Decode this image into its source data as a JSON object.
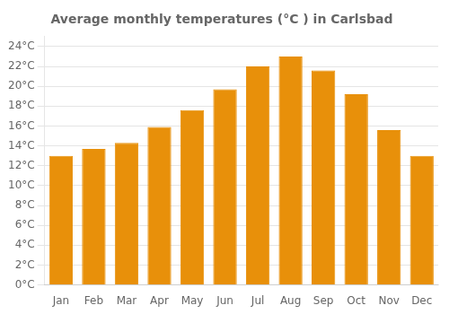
{
  "chart_data": {
    "type": "bar",
    "title": "Average monthly temperatures (°C ) in Carlsbad",
    "categories": [
      "Jan",
      "Feb",
      "Mar",
      "Apr",
      "May",
      "Jun",
      "Jul",
      "Aug",
      "Sep",
      "Oct",
      "Nov",
      "Dec"
    ],
    "values": [
      13.0,
      13.7,
      14.3,
      15.9,
      17.6,
      19.7,
      22.0,
      23.0,
      21.6,
      19.2,
      15.6,
      13.0
    ],
    "color": "#E8900A",
    "ylim": [
      0,
      25
    ],
    "yticks": [
      {
        "value": 0,
        "label": "0°C"
      },
      {
        "value": 2,
        "label": "2°C"
      },
      {
        "value": 4,
        "label": "4°C"
      },
      {
        "value": 6,
        "label": "6°C"
      },
      {
        "value": 8,
        "label": "8°C"
      },
      {
        "value": 10,
        "label": "10°C"
      },
      {
        "value": 12,
        "label": "12°C"
      },
      {
        "value": 14,
        "label": "14°C"
      },
      {
        "value": 16,
        "label": "16°C"
      },
      {
        "value": 18,
        "label": "18°C"
      },
      {
        "value": 20,
        "label": "20°C"
      },
      {
        "value": 22,
        "label": "22°C"
      },
      {
        "value": 24,
        "label": "24°C"
      }
    ],
    "grid": true
  }
}
